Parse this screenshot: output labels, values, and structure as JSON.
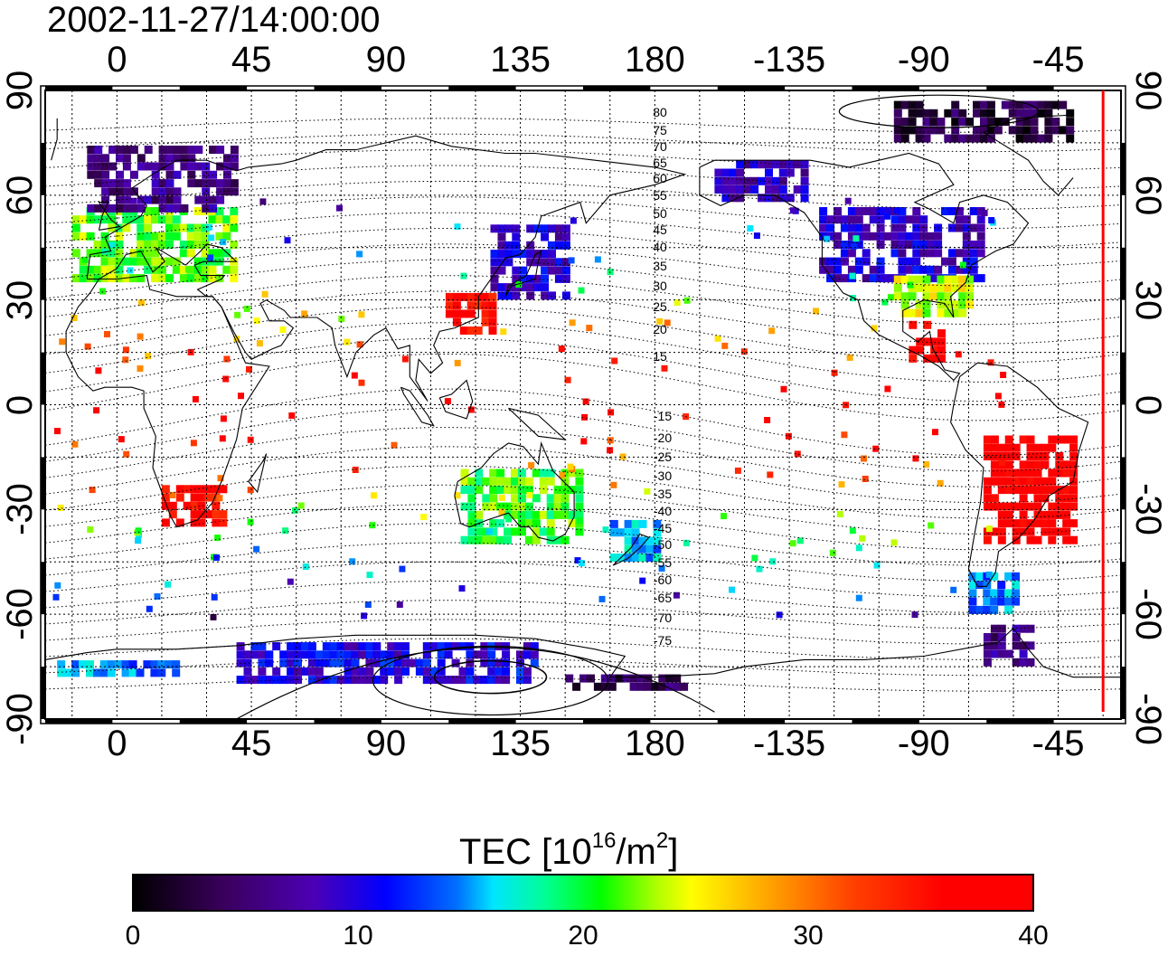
{
  "title": "2002-11-27/14:00:00",
  "axes": {
    "lon_ticks": [
      "0",
      "45",
      "90",
      "135",
      "180",
      "-135",
      "-90",
      "-45"
    ],
    "lat_ticks": [
      "90",
      "60",
      "30",
      "0",
      "-30",
      "-60",
      "-90"
    ]
  },
  "contour_labels": [
    "80",
    "75",
    "70",
    "65",
    "60",
    "55",
    "50",
    "45",
    "40",
    "35",
    "30",
    "25",
    "20",
    "15",
    "-15",
    "-20",
    "-25",
    "-30",
    "-35",
    "-40",
    "-45",
    "-50",
    "-55",
    "-60",
    "-65",
    "-70",
    "-75"
  ],
  "colorbar": {
    "label_main": "TEC  [10",
    "label_sup1": "16",
    "label_mid": "/m",
    "label_sup2": "2",
    "label_end": "]",
    "ticks": [
      "0",
      "10",
      "20",
      "30",
      "40"
    ],
    "min": 0,
    "max": 40
  },
  "colors": {
    "terminator": "#ff0000",
    "scale": [
      "#000000",
      "#4c00b4",
      "#0000ff",
      "#00e5ff",
      "#00ff00",
      "#ffff00",
      "#ff8000",
      "#ff0000"
    ]
  },
  "chart_data": {
    "type": "heatmap",
    "x": {
      "label": "longitude",
      "range": [
        -24,
        336
      ]
    },
    "y": {
      "label": "latitude",
      "range": [
        -90,
        90
      ]
    },
    "value_label": "TEC",
    "value_range": [
      0,
      40
    ],
    "regions": [
      {
        "lon": [
          -15,
          40
        ],
        "lat": [
          35,
          55
        ],
        "value": 22
      },
      {
        "lon": [
          -10,
          40
        ],
        "lat": [
          55,
          72
        ],
        "value": 6
      },
      {
        "lon": [
          125,
          150
        ],
        "lat": [
          30,
          50
        ],
        "value": 9
      },
      {
        "lon": [
          110,
          125
        ],
        "lat": [
          20,
          30
        ],
        "value": 36
      },
      {
        "lon": [
          -125,
          -70
        ],
        "lat": [
          35,
          55
        ],
        "value": 9
      },
      {
        "lon": [
          -100,
          -75
        ],
        "lat": [
          25,
          35
        ],
        "value": 24
      },
      {
        "lon": [
          -95,
          -85
        ],
        "lat": [
          12,
          22
        ],
        "value": 37
      },
      {
        "lon": [
          -70,
          -40
        ],
        "lat": [
          -10,
          -40
        ],
        "value": 38
      },
      {
        "lon": [
          15,
          35
        ],
        "lat": [
          -25,
          -35
        ],
        "value": 36
      },
      {
        "lon": [
          115,
          155
        ],
        "lat": [
          -20,
          -40
        ],
        "value": 21
      },
      {
        "lon": [
          165,
          180
        ],
        "lat": [
          -35,
          -45
        ],
        "value": 15
      },
      {
        "lon": [
          -75,
          -60
        ],
        "lat": [
          -50,
          -60
        ],
        "value": 14
      },
      {
        "lon": [
          -70,
          -55
        ],
        "lat": [
          -65,
          -75
        ],
        "value": 6
      },
      {
        "lon": [
          -160,
          -130
        ],
        "lat": [
          58,
          70
        ],
        "value": 8
      },
      {
        "lon": [
          -100,
          -40
        ],
        "lat": [
          75,
          85
        ],
        "value": 3
      },
      {
        "lon": [
          40,
          140
        ],
        "lat": [
          -70,
          -80
        ],
        "value": 10
      },
      {
        "lon": [
          -20,
          20
        ],
        "lat": [
          -75,
          -78
        ],
        "value": 14
      },
      {
        "lon": [
          150,
          190
        ],
        "lat": [
          -78,
          -82
        ],
        "value": 4
      }
    ],
    "terminator_lon": -30
  }
}
